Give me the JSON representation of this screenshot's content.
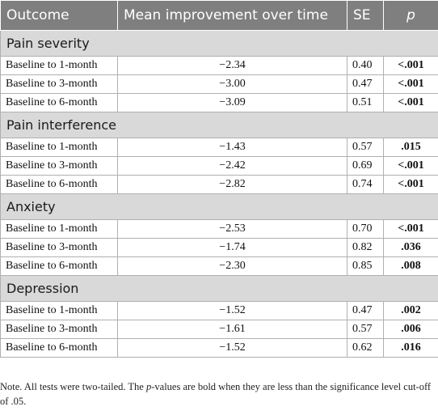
{
  "table": {
    "headers": {
      "outcome": "Outcome",
      "mean": "Mean improvement over time",
      "se": "SE",
      "p": "p"
    },
    "groups": [
      {
        "name": "Pain severity",
        "rows": [
          {
            "comparison": "Baseline to 1-month",
            "mean": "−2.34",
            "se": "0.40",
            "p": "<.001"
          },
          {
            "comparison": "Baseline to 3-month",
            "mean": "−3.00",
            "se": "0.47",
            "p": "<.001"
          },
          {
            "comparison": "Baseline to 6-month",
            "mean": "−3.09",
            "se": "0.51",
            "p": "<.001"
          }
        ]
      },
      {
        "name": "Pain interference",
        "rows": [
          {
            "comparison": "Baseline to 1-month",
            "mean": "−1.43",
            "se": "0.57",
            "p": ".015"
          },
          {
            "comparison": "Baseline to 3-month",
            "mean": "−2.42",
            "se": "0.69",
            "p": "<.001"
          },
          {
            "comparison": "Baseline to 6-month",
            "mean": "−2.82",
            "se": "0.74",
            "p": "<.001"
          }
        ]
      },
      {
        "name": "Anxiety",
        "rows": [
          {
            "comparison": "Baseline to 1-month",
            "mean": "−2.53",
            "se": "0.70",
            "p": "<.001"
          },
          {
            "comparison": "Baseline to 3-month",
            "mean": "−1.74",
            "se": "0.82",
            "p": ".036"
          },
          {
            "comparison": "Baseline to 6-month",
            "mean": "−2.30",
            "se": "0.85",
            "p": ".008"
          }
        ]
      },
      {
        "name": "Depression",
        "rows": [
          {
            "comparison": "Baseline to 1-month",
            "mean": "−1.52",
            "se": "0.47",
            "p": ".002"
          },
          {
            "comparison": "Baseline to 3-month",
            "mean": "−1.61",
            "se": "0.57",
            "p": ".006"
          },
          {
            "comparison": "Baseline to 6-month",
            "mean": "−1.52",
            "se": "0.62",
            "p": ".016"
          }
        ]
      }
    ]
  },
  "note": {
    "prefix": "Note. All tests were two-tailed. The ",
    "italic": "p",
    "suffix": "-values are bold when they are less than the significance level cut-off of .05."
  }
}
